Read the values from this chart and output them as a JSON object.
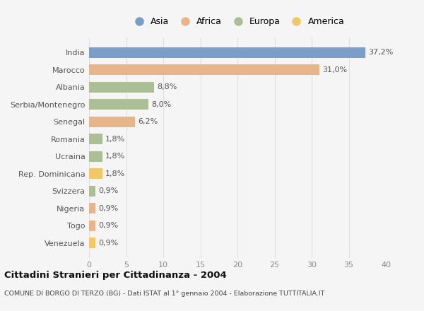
{
  "countries": [
    "India",
    "Marocco",
    "Albania",
    "Serbia/Montenegro",
    "Senegal",
    "Romania",
    "Ucraina",
    "Rep. Dominicana",
    "Svizzera",
    "Nigeria",
    "Togo",
    "Venezuela"
  ],
  "values": [
    37.2,
    31.0,
    8.8,
    8.0,
    6.2,
    1.8,
    1.8,
    1.8,
    0.9,
    0.9,
    0.9,
    0.9
  ],
  "labels": [
    "37,2%",
    "31,0%",
    "8,8%",
    "8,0%",
    "6,2%",
    "1,8%",
    "1,8%",
    "1,8%",
    "0,9%",
    "0,9%",
    "0,9%",
    "0,9%"
  ],
  "continents": [
    "Asia",
    "Africa",
    "Europa",
    "Europa",
    "Africa",
    "Europa",
    "Europa",
    "America",
    "Europa",
    "Africa",
    "Africa",
    "America"
  ],
  "colors": {
    "Asia": "#7b9dc9",
    "Africa": "#e8b48a",
    "Europa": "#abbe96",
    "America": "#f0c86a"
  },
  "legend_order": [
    "Asia",
    "Africa",
    "Europa",
    "America"
  ],
  "xlim": [
    0,
    40
  ],
  "xticks": [
    0,
    5,
    10,
    15,
    20,
    25,
    30,
    35,
    40
  ],
  "title": "Cittadini Stranieri per Cittadinanza - 2004",
  "subtitle": "COMUNE DI BORGO DI TERZO (BG) - Dati ISTAT al 1° gennaio 2004 - Elaborazione TUTTITALIA.IT",
  "bg_color": "#f5f5f5",
  "bar_height": 0.6,
  "grid_color": "#e0e0e0",
  "label_fontsize": 8,
  "tick_fontsize": 8,
  "legend_fontsize": 9
}
